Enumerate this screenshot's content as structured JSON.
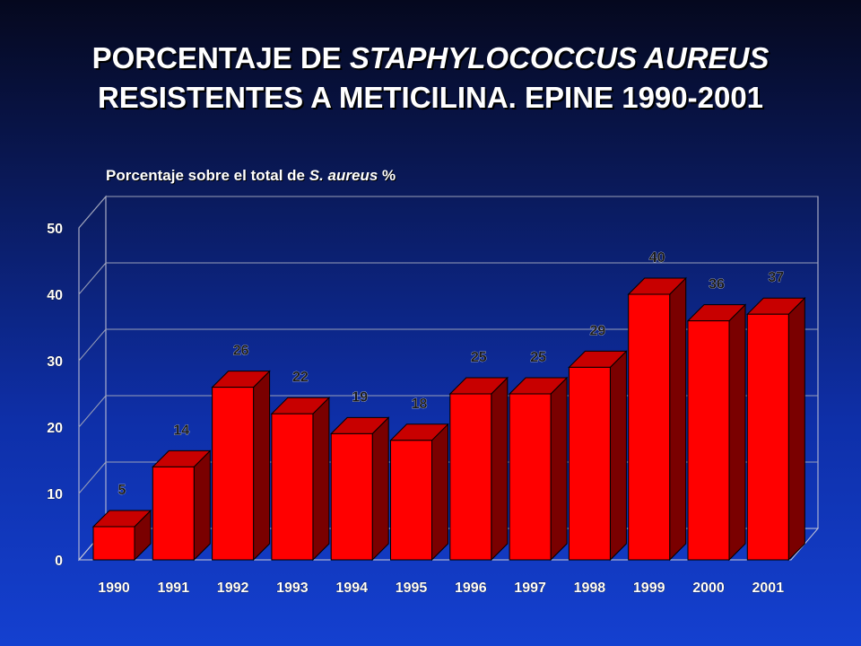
{
  "title": {
    "line1_prefix": "PORCENTAJE DE ",
    "line1_italic": "STAPHYLOCOCCUS AUREUS",
    "line2": "RESISTENTES A METICILINA.  EPINE 1990-2001"
  },
  "subtitle": {
    "prefix": "Porcentaje sobre el total de ",
    "italic": "S. aureus",
    "suffix": " %"
  },
  "colors": {
    "bar_front": "#ff0000",
    "bar_side": "#7a0000",
    "bar_top": "#c80000",
    "label_color": "#ffffff",
    "value_label_color": "#1a1a1a"
  },
  "chart_data": {
    "type": "bar",
    "categories": [
      "1990",
      "1991",
      "1992",
      "1993",
      "1994",
      "1995",
      "1996",
      "1997",
      "1998",
      "1999",
      "2000",
      "2001"
    ],
    "values": [
      5,
      14,
      26,
      22,
      19,
      18,
      25,
      25,
      29,
      40,
      36,
      37
    ],
    "ylim": [
      0,
      50
    ],
    "yticks": [
      0,
      10,
      20,
      30,
      40,
      50
    ],
    "grid": true,
    "three_d": true
  }
}
